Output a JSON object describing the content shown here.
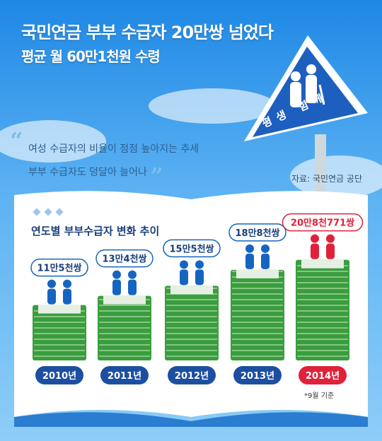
{
  "header": {
    "title": "국민연금 부부 수급자 20만쌍 넘었다",
    "subtitle": "평균 월 60만1천원 수령"
  },
  "sign": {
    "text": "평생 함께"
  },
  "quote": {
    "line1": "여성 수급자의 비율이 점점 높아지는 추세",
    "line2": "부부 수급자도 덩달아 늘어나"
  },
  "source": "자료: 국민연금 공단",
  "footnote": "*9월 기준",
  "colors": {
    "accent": "#1d4fa0",
    "highlight": "#e0213a",
    "money": "#3a9d3e",
    "page": "#ffffff"
  },
  "chart_data": {
    "type": "bar",
    "title": "연도별 부부수급자 변화 추이",
    "categories": [
      "2010년",
      "2011년",
      "2012년",
      "2013년",
      "2014년"
    ],
    "values": [
      115000,
      134000,
      155000,
      188000,
      208771
    ],
    "value_labels": [
      "11만5천쌍",
      "13만4천쌍",
      "15만5천쌍",
      "18만8천쌍",
      "20만8천771쌍"
    ],
    "highlight_index": 4
  }
}
